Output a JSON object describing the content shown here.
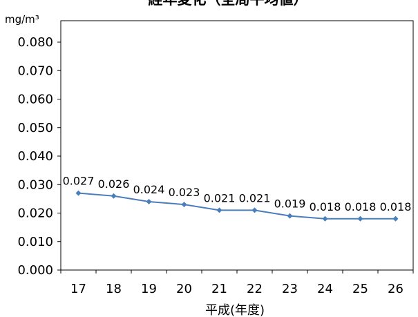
{
  "chart_data": {
    "type": "line",
    "title": "経年変化（全局平均値）",
    "ylabel": "mg/m³",
    "xlabel": "平成(年度)",
    "categories": [
      "17",
      "18",
      "19",
      "20",
      "21",
      "22",
      "23",
      "24",
      "25",
      "26"
    ],
    "series": [
      {
        "values": [
          0.027,
          0.026,
          0.024,
          0.023,
          0.021,
          0.021,
          0.019,
          0.018,
          0.018,
          0.018
        ],
        "labels": [
          "0.027",
          "0.026",
          "0.024",
          "0.023",
          "0.021",
          "0.021",
          "0.019",
          "0.018",
          "0.018",
          "0.018"
        ]
      }
    ],
    "ylim": [
      0,
      0.08
    ],
    "yticks": [
      "0.000",
      "0.010",
      "0.020",
      "0.030",
      "0.040",
      "0.050",
      "0.060",
      "0.070",
      "0.080"
    ],
    "grid": false,
    "legend": "none",
    "colors": {
      "line": "#4A7EBB",
      "marker": "#4A7EBB",
      "axis": "#000000"
    }
  }
}
